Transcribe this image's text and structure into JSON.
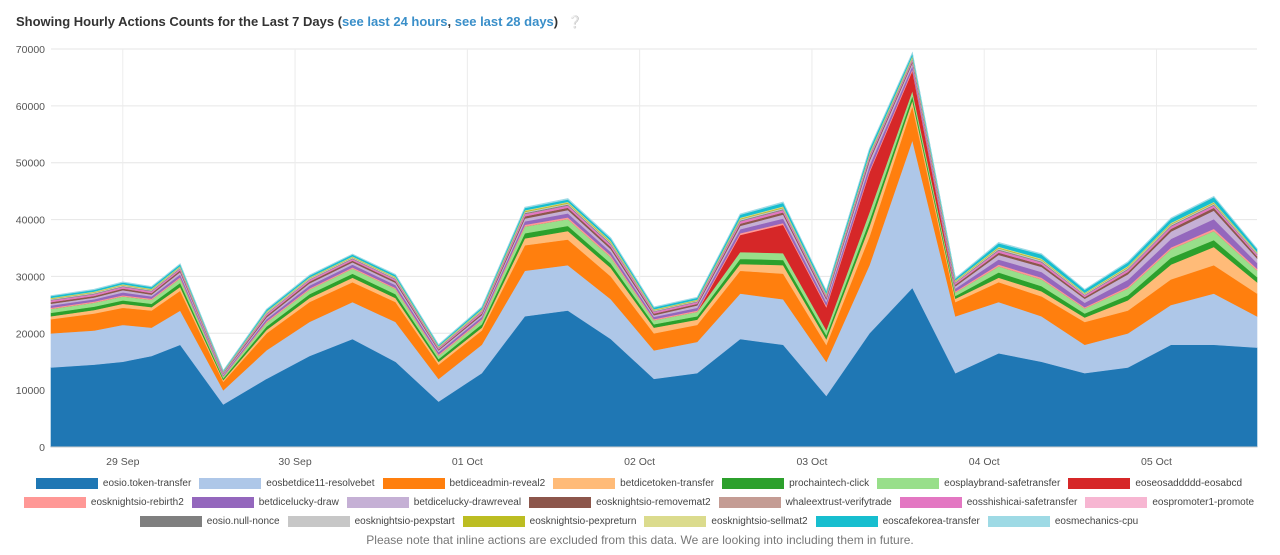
{
  "header": {
    "title": "Showing Hourly Actions Counts for the Last 7 Days",
    "paren_open": "(",
    "link_24h": "see last 24 hours",
    "separator": ", ",
    "link_28d": "see last 28 days",
    "paren_close": ")",
    "help_icon": "question-icon"
  },
  "footnote": "Please note that inline actions are excluded from this data. We are looking into including them in future.",
  "chart_data": {
    "type": "area",
    "stacked": true,
    "title": "Showing Hourly Actions Counts for the Last 7 Days",
    "xlabel": "",
    "ylabel": "",
    "ylim": [
      0,
      70000
    ],
    "y_ticks": [
      "0",
      "10000",
      "20000",
      "30000",
      "40000",
      "50000",
      "60000",
      "70000"
    ],
    "y_tick_values": [
      0,
      10000,
      20000,
      30000,
      40000,
      50000,
      60000,
      70000
    ],
    "x_ticks": [
      "29 Sep",
      "30 Sep",
      "01 Oct",
      "02 Oct",
      "03 Oct",
      "04 Oct",
      "05 Oct"
    ],
    "grid": true,
    "legend_position": "bottom",
    "x_hours": [
      0,
      6,
      10,
      14,
      18,
      24,
      30,
      36,
      42,
      48,
      54,
      60,
      66,
      72,
      78,
      84,
      90,
      96,
      102,
      108,
      114,
      120,
      126,
      132,
      138,
      144,
      150,
      156,
      162,
      168
    ],
    "x_labels_hours": [
      10,
      34,
      58,
      82,
      106,
      130,
      154
    ],
    "series": [
      {
        "name": "eosio.token-transfer",
        "color": "#1f77b4",
        "values": [
          14000,
          14500,
          15000,
          16000,
          18000,
          7500,
          12000,
          16000,
          19000,
          15000,
          8000,
          13000,
          23000,
          24000,
          19000,
          12000,
          13000,
          19000,
          18000,
          9000,
          20000,
          28000,
          13000,
          16500,
          15000,
          13000,
          14000,
          18000,
          18000,
          17500
        ]
      },
      {
        "name": "eosbetdice11-resolvebet",
        "color": "#aec7e8",
        "values": [
          6000,
          6000,
          6500,
          5000,
          6000,
          2500,
          5000,
          6000,
          6500,
          7000,
          4000,
          5000,
          8000,
          8000,
          7000,
          5000,
          5500,
          8000,
          8000,
          6000,
          12000,
          26000,
          10000,
          9000,
          8000,
          5000,
          6000,
          7000,
          9000,
          5500
        ]
      },
      {
        "name": "betdiceadmin-reveal2",
        "color": "#ff7f0e",
        "values": [
          2500,
          3000,
          3000,
          3000,
          3500,
          1500,
          3000,
          3500,
          3500,
          3500,
          2500,
          2500,
          4500,
          4500,
          4000,
          3000,
          3000,
          4000,
          4500,
          3000,
          5000,
          6000,
          2500,
          3500,
          3500,
          4000,
          4000,
          4500,
          5000,
          4000
        ]
      },
      {
        "name": "betdicetoken-transfer",
        "color": "#ffbb78",
        "values": [
          500,
          600,
          700,
          600,
          700,
          300,
          600,
          700,
          800,
          700,
          500,
          500,
          1200,
          1500,
          1500,
          1000,
          900,
          1200,
          1500,
          1000,
          1800,
          1000,
          600,
          800,
          900,
          800,
          1800,
          2600,
          3200,
          2000
        ]
      },
      {
        "name": "prochaintech-click",
        "color": "#2ca02c",
        "values": [
          600,
          600,
          600,
          600,
          700,
          300,
          600,
          700,
          700,
          700,
          500,
          600,
          900,
          900,
          800,
          600,
          600,
          900,
          900,
          700,
          1000,
          800,
          500,
          900,
          900,
          700,
          900,
          1200,
          1200,
          900
        ]
      },
      {
        "name": "eosplaybrand-safetransfer",
        "color": "#98df8a",
        "values": [
          700,
          700,
          700,
          700,
          800,
          300,
          700,
          800,
          900,
          900,
          600,
          700,
          1200,
          1200,
          1100,
          700,
          800,
          1200,
          1200,
          900,
          1500,
          900,
          600,
          1100,
          1200,
          900,
          1200,
          1500,
          1600,
          1200
        ]
      },
      {
        "name": "eoseosaddddd-eosabcd",
        "color": "#d62728",
        "values": [
          0,
          0,
          0,
          0,
          0,
          0,
          0,
          0,
          0,
          0,
          0,
          0,
          0,
          0,
          0,
          0,
          0,
          3000,
          5000,
          4000,
          7000,
          3500,
          0,
          0,
          0,
          0,
          0,
          0,
          0,
          0
        ]
      },
      {
        "name": "eosknightsio-rebirth2",
        "color": "#ff9896",
        "values": [
          200,
          200,
          200,
          200,
          200,
          100,
          200,
          200,
          200,
          200,
          200,
          200,
          300,
          300,
          300,
          200,
          200,
          300,
          300,
          300,
          300,
          300,
          200,
          300,
          300,
          200,
          300,
          300,
          400,
          300
        ]
      },
      {
        "name": "betdicelucky-draw",
        "color": "#9467bd",
        "values": [
          400,
          400,
          500,
          400,
          500,
          200,
          400,
          500,
          500,
          500,
          400,
          400,
          600,
          700,
          600,
          400,
          500,
          700,
          800,
          600,
          900,
          600,
          500,
          900,
          1000,
          800,
          1200,
          1500,
          1700,
          1000
        ]
      },
      {
        "name": "betdicelucky-drawreveal",
        "color": "#c5b0d5",
        "values": [
          300,
          300,
          400,
          300,
          400,
          200,
          300,
          400,
          400,
          400,
          300,
          300,
          500,
          600,
          500,
          300,
          400,
          600,
          700,
          500,
          800,
          500,
          400,
          800,
          900,
          700,
          1000,
          1300,
          1500,
          800
        ]
      },
      {
        "name": "eosknightsio-removemat2",
        "color": "#8c564b",
        "values": [
          300,
          300,
          300,
          300,
          300,
          100,
          300,
          300,
          300,
          300,
          200,
          300,
          400,
          400,
          400,
          300,
          300,
          400,
          400,
          300,
          400,
          300,
          300,
          400,
          400,
          300,
          400,
          500,
          500,
          400
        ]
      },
      {
        "name": "whaleextrust-verifytrade",
        "color": "#c49c94",
        "values": [
          0,
          0,
          0,
          0,
          0,
          0,
          0,
          0,
          0,
          0,
          0,
          0,
          0,
          0,
          0,
          0,
          0,
          0,
          0,
          0,
          0,
          0,
          0,
          0,
          0,
          0,
          0,
          0,
          0,
          0
        ]
      },
      {
        "name": "eosshishicai-safetransfer",
        "color": "#e377c2",
        "values": [
          300,
          300,
          300,
          300,
          300,
          100,
          300,
          300,
          300,
          300,
          200,
          300,
          400,
          400,
          400,
          300,
          300,
          400,
          400,
          300,
          400,
          300,
          300,
          400,
          400,
          300,
          400,
          400,
          400,
          300
        ]
      },
      {
        "name": "eospromoter1-promote",
        "color": "#f7b6d2",
        "values": [
          0,
          0,
          0,
          0,
          0,
          0,
          0,
          0,
          0,
          0,
          0,
          0,
          0,
          0,
          0,
          0,
          0,
          0,
          0,
          0,
          0,
          0,
          0,
          0,
          0,
          0,
          0,
          0,
          0,
          0
        ]
      },
      {
        "name": "eosio.null-nonce",
        "color": "#7f7f7f",
        "values": [
          100,
          100,
          100,
          100,
          100,
          50,
          100,
          100,
          100,
          100,
          100,
          100,
          150,
          150,
          150,
          100,
          100,
          150,
          150,
          100,
          150,
          150,
          100,
          150,
          150,
          100,
          150,
          150,
          150,
          100
        ]
      },
      {
        "name": "eosknightsio-pexpstart",
        "color": "#c7c7c7",
        "values": [
          150,
          150,
          150,
          150,
          150,
          80,
          150,
          150,
          150,
          150,
          100,
          150,
          200,
          200,
          200,
          150,
          150,
          200,
          200,
          150,
          200,
          200,
          150,
          200,
          200,
          150,
          200,
          200,
          200,
          150
        ]
      },
      {
        "name": "eosknightsio-pexpreturn",
        "color": "#bcbd22",
        "values": [
          100,
          100,
          100,
          100,
          100,
          50,
          100,
          100,
          100,
          100,
          80,
          100,
          150,
          150,
          150,
          100,
          100,
          150,
          150,
          100,
          150,
          150,
          100,
          150,
          150,
          100,
          150,
          150,
          150,
          100
        ]
      },
      {
        "name": "eosknightsio-sellmat2",
        "color": "#dbdb8d",
        "values": [
          100,
          100,
          100,
          100,
          100,
          50,
          100,
          100,
          100,
          100,
          80,
          100,
          150,
          150,
          150,
          100,
          100,
          150,
          150,
          100,
          150,
          150,
          100,
          150,
          150,
          100,
          150,
          150,
          150,
          100
        ]
      },
      {
        "name": "eoscafekorea-transfer",
        "color": "#17becf",
        "values": [
          300,
          300,
          300,
          300,
          300,
          100,
          300,
          300,
          300,
          300,
          200,
          300,
          400,
          400,
          400,
          300,
          300,
          500,
          600,
          400,
          600,
          400,
          300,
          600,
          700,
          500,
          600,
          700,
          800,
          500
        ]
      },
      {
        "name": "eosmechanics-cpu",
        "color": "#9edae5",
        "values": [
          100,
          100,
          100,
          100,
          100,
          50,
          100,
          100,
          100,
          100,
          80,
          100,
          150,
          150,
          150,
          100,
          100,
          150,
          150,
          100,
          150,
          150,
          100,
          150,
          150,
          100,
          150,
          150,
          150,
          100
        ]
      }
    ]
  }
}
